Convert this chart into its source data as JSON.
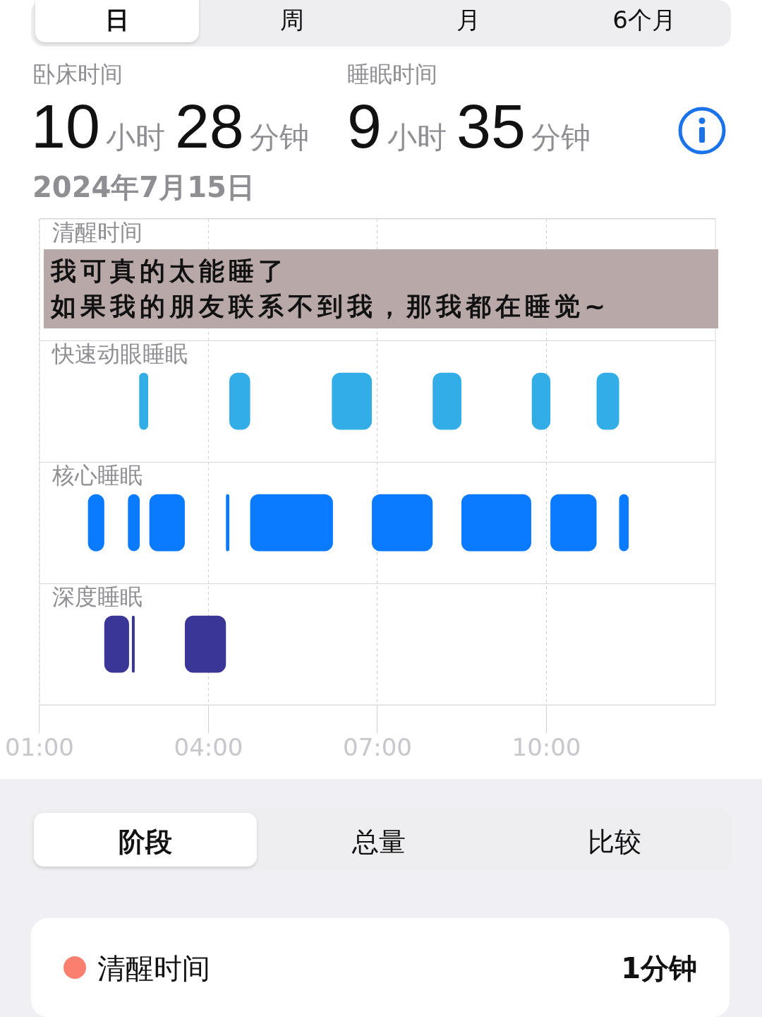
{
  "chart_data": {
    "type": "bar",
    "orientation": "horizontal",
    "categories": [
      "清醒时间",
      "快速动眼睡眠",
      "核心睡眠",
      "深度睡眠"
    ],
    "series": [
      {
        "colors": [
          null,
          "#32ade6",
          "#0a7aff",
          "#3a3697"
        ],
        "base": [
          null,
          2.77,
          1.86,
          2.15
        ],
        "values": [
          null,
          0.16,
          0.29,
          0.44
        ]
      },
      {
        "colors": [
          null,
          "#32ade6",
          "#0a7aff",
          "#3a3697"
        ],
        "base": [
          null,
          4.37,
          2.57,
          2.64
        ],
        "values": [
          null,
          0.37,
          0.21,
          0.05
        ]
      },
      {
        "colors": [
          null,
          "#32ade6",
          "#0a7aff",
          "#3a3697"
        ],
        "base": [
          null,
          6.19,
          2.95,
          3.58
        ],
        "values": [
          null,
          0.71,
          0.63,
          0.73
        ]
      },
      {
        "colors": [
          null,
          "#32ade6",
          "#0a7aff",
          null
        ],
        "base": [
          null,
          7.98,
          4.31,
          null
        ],
        "values": [
          null,
          0.51,
          0.06,
          null
        ]
      },
      {
        "colors": [
          null,
          "#32ade6",
          "#0a7aff",
          null
        ],
        "base": [
          null,
          9.74,
          4.74,
          null
        ],
        "values": [
          null,
          0.33,
          1.47,
          null
        ]
      },
      {
        "colors": [
          null,
          "#32ade6",
          "#0a7aff",
          null
        ],
        "base": [
          null,
          10.89,
          6.9,
          null
        ],
        "values": [
          null,
          0.4,
          1.08,
          null
        ]
      },
      {
        "colors": [
          null,
          null,
          "#0a7aff",
          null
        ],
        "base": [
          null,
          null,
          8.49,
          null
        ],
        "values": [
          null,
          null,
          1.24,
          null
        ]
      },
      {
        "colors": [
          null,
          null,
          "#0a7aff",
          null
        ],
        "base": [
          null,
          null,
          10.07,
          null
        ],
        "values": [
          null,
          null,
          0.82,
          null
        ]
      },
      {
        "colors": [
          null,
          null,
          "#0a7aff",
          null
        ],
        "base": [
          null,
          null,
          11.29,
          null
        ],
        "values": [
          null,
          null,
          0.17,
          null
        ]
      }
    ],
    "xlim": [
      1,
      13
    ],
    "xticks": [
      {
        "value": 1,
        "label": "01:00"
      },
      {
        "value": 4,
        "label": "04:00"
      },
      {
        "value": 7,
        "label": "07:00"
      },
      {
        "value": 10,
        "label": "10:00"
      }
    ],
    "grid": true,
    "annotations": [
      "日",
      "周",
      "月",
      "6个月",
      "卧床时间",
      "睡眠时间",
      "10",
      "小时",
      "28",
      "分钟",
      "9",
      "小时",
      "35",
      "分钟",
      "2024年7月15日",
      "我可真的太能睡了",
      "如果我的朋友联系不到我，那我都在睡觉~",
      "阶段",
      "总量",
      "比较",
      "清醒时间",
      "1分钟"
    ]
  }
}
